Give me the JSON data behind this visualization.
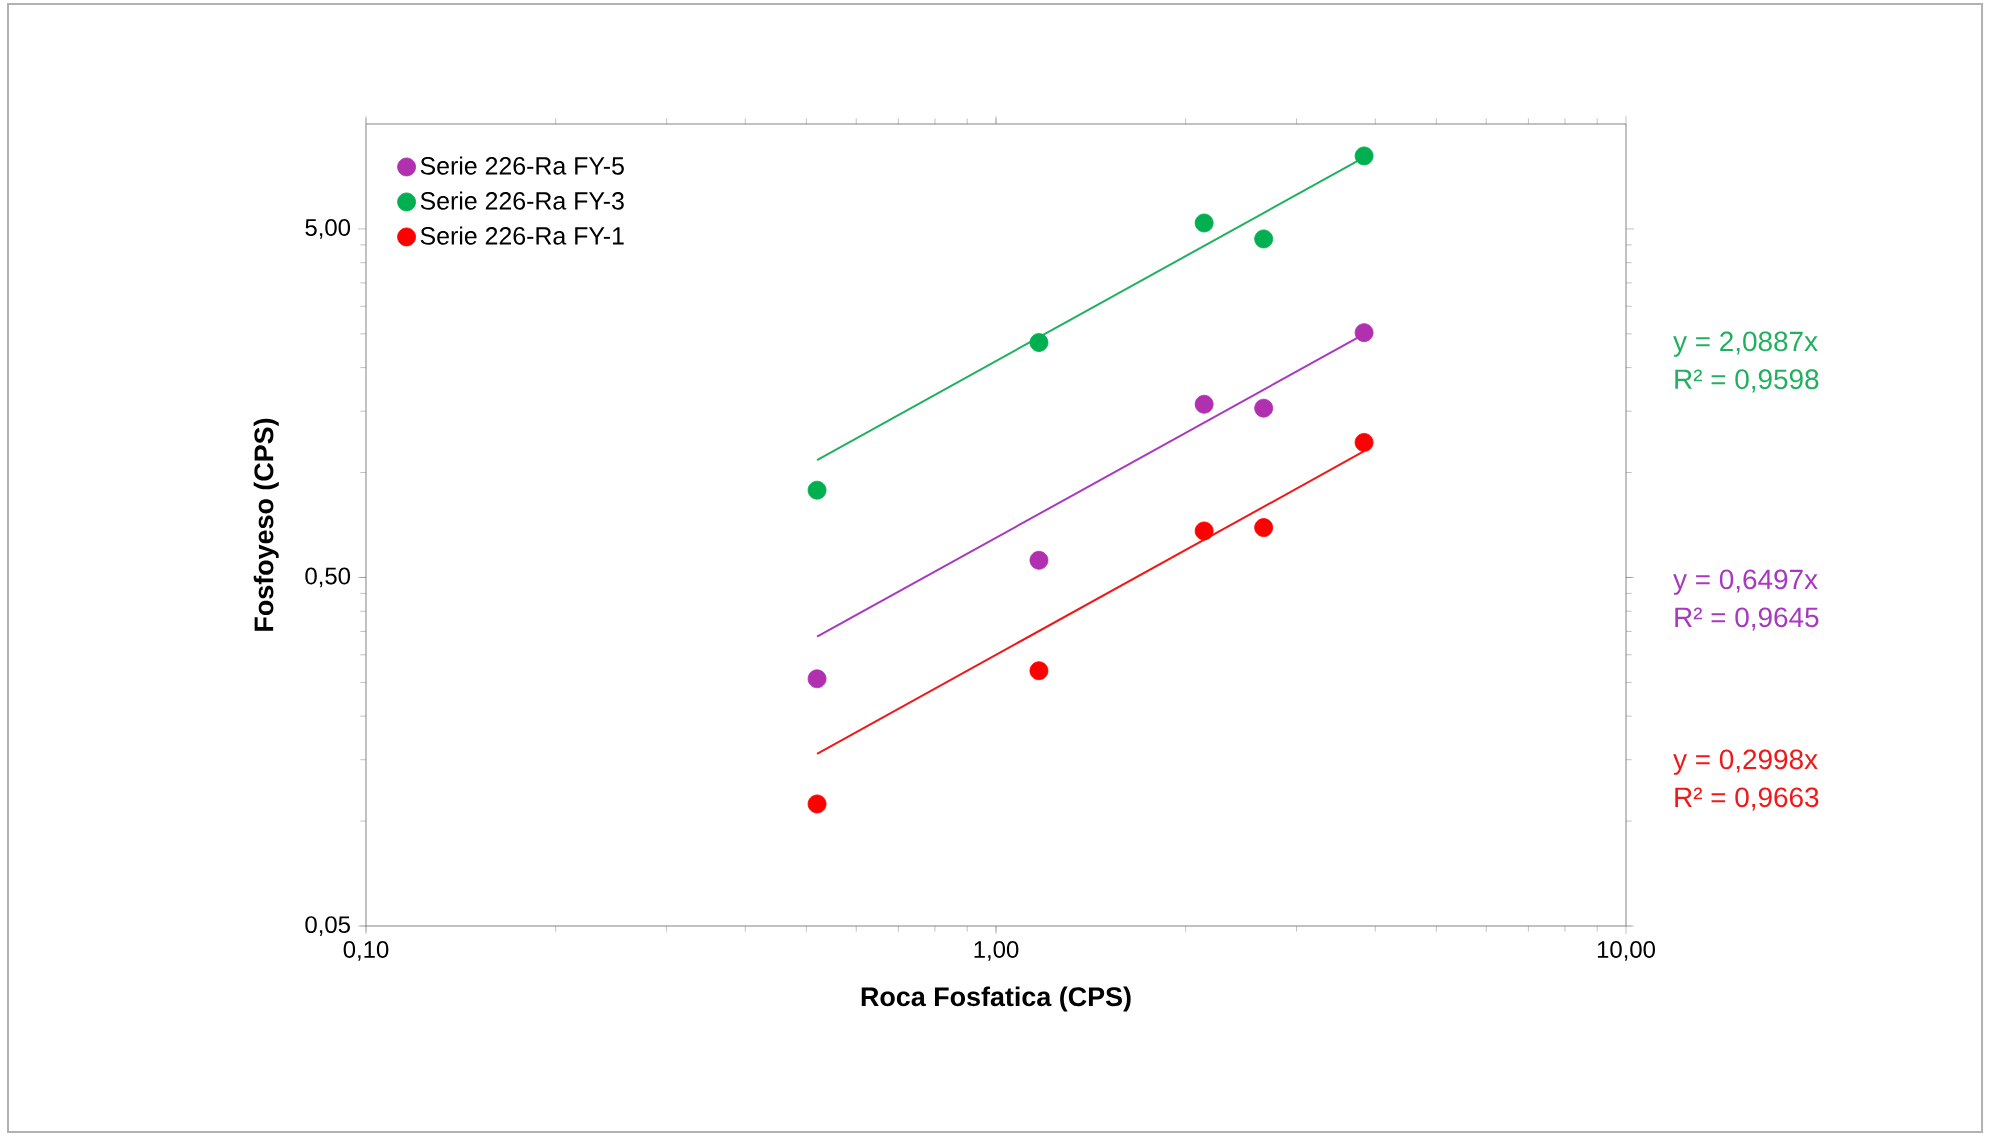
{
  "chart_data": {
    "type": "scatter",
    "xlabel": "Roca Fosfatica (CPS)",
    "ylabel": "Fosfoyeso (CPS)",
    "log": "xy",
    "grid": false,
    "legend": "top left",
    "xlim": [
      0.1,
      10
    ],
    "ylim": [
      0.05,
      10
    ],
    "xticks": [
      {
        "value": 0.1,
        "label": "0,10"
      },
      {
        "value": 1,
        "label": "1,00"
      },
      {
        "value": 10,
        "label": "10,00"
      }
    ],
    "yticks": [
      {
        "value": 0.05,
        "label": "0,05"
      },
      {
        "value": 0.5,
        "label": "0,50"
      },
      {
        "value": 5,
        "label": "5,00"
      }
    ],
    "series": [
      {
        "name": "Serie 226-Ra FY-5",
        "marker": "circle",
        "color": "#b030b0",
        "x": [
          0.52,
          1.17,
          2.14,
          2.66,
          3.84
        ],
        "values": [
          0.256,
          0.56,
          1.57,
          1.53,
          2.52
        ]
      },
      {
        "name": "Serie 226-Ra FY-3",
        "marker": "circle",
        "color": "#00b050",
        "x": [
          0.52,
          1.17,
          2.14,
          2.66,
          3.84
        ],
        "values": [
          0.89,
          2.36,
          5.2,
          4.68,
          8.1
        ]
      },
      {
        "name": "Serie 226-Ra FY-1",
        "marker": "circle",
        "color": "#ff0000",
        "x": [
          0.52,
          1.17,
          2.14,
          2.66,
          3.84
        ],
        "values": [
          0.112,
          0.27,
          0.68,
          0.695,
          1.22
        ]
      },
      {
        "type": "line",
        "marker": "none",
        "name": "y = 2,0887x",
        "color": "#20b060",
        "x": [
          0.52,
          3.84
        ],
        "values": [
          1.086,
          8.02
        ]
      },
      {
        "type": "line",
        "marker": "none",
        "name": "y = 0,6497x",
        "color": "#a838c0",
        "x": [
          0.52,
          3.84
        ],
        "values": [
          0.338,
          2.495
        ]
      },
      {
        "type": "line",
        "marker": "none",
        "name": "y = 0,2998x",
        "color": "#f01818",
        "x": [
          0.52,
          3.84
        ],
        "values": [
          0.156,
          1.151
        ]
      }
    ],
    "annotations": [
      "R² = 0,9598",
      "R² = 0,9645",
      "R² = 0,9663"
    ]
  }
}
